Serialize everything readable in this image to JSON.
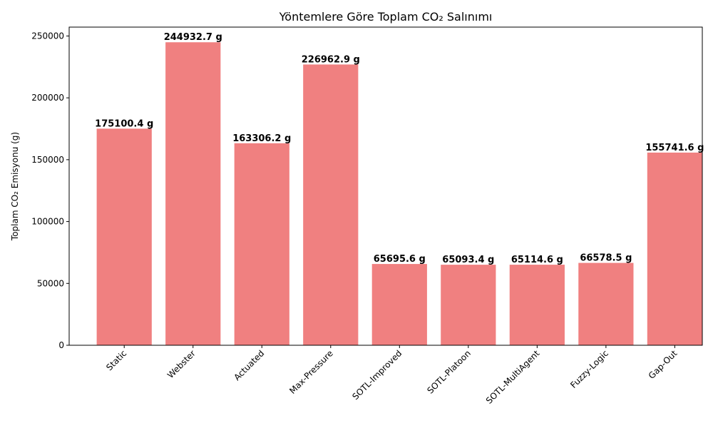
{
  "chart_data": {
    "type": "bar",
    "title": "Yöntemlere Göre Toplam CO₂ Salınımı",
    "xlabel": "",
    "ylabel": "Toplam CO₂ Emisyonu (g)",
    "categories": [
      "Static",
      "Webster",
      "Actuated",
      "Max-Pressure",
      "SOTL-Improved",
      "SOTL-Platoon",
      "SOTL-MultiAgent",
      "Fuzzy-Logic",
      "Gap-Out"
    ],
    "values": [
      175100.4,
      244932.7,
      163306.2,
      226962.9,
      65695.6,
      65093.4,
      65114.6,
      66578.5,
      155741.6
    ],
    "data_labels": [
      "175100.4 g",
      "244932.7 g",
      "163306.2 g",
      "226962.9 g",
      "65695.6 g",
      "65093.4 g",
      "65114.6 g",
      "66578.5 g",
      "155741.6 g"
    ],
    "ylim": [
      0,
      257179.3
    ],
    "yticks": [
      0,
      50000,
      100000,
      150000,
      200000,
      250000
    ],
    "ytick_labels": [
      "0",
      "50000",
      "100000",
      "150000",
      "200000",
      "250000"
    ],
    "bar_color": "#f08080",
    "grid": false,
    "legend": "none"
  }
}
